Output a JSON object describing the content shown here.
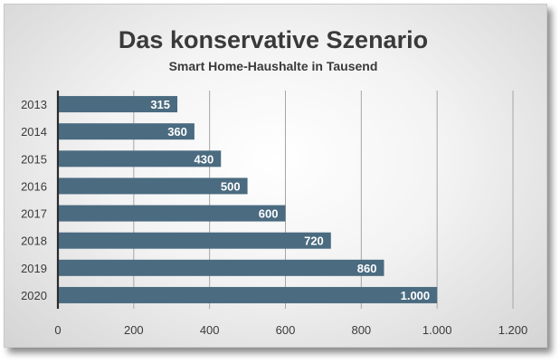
{
  "chart_data": {
    "type": "bar",
    "orientation": "horizontal",
    "title": "Das konservative Szenario",
    "subtitle": "Smart Home-Haushalte in Tausend",
    "categories": [
      "2013",
      "2014",
      "2015",
      "2016",
      "2017",
      "2018",
      "2019",
      "2020"
    ],
    "values": [
      315,
      360,
      430,
      500,
      600,
      720,
      860,
      1000
    ],
    "value_labels": [
      "315",
      "360",
      "430",
      "500",
      "600",
      "720",
      "860",
      "1.000"
    ],
    "xlim": [
      0,
      1200
    ],
    "x_ticks": [
      0,
      200,
      400,
      600,
      800,
      1000,
      1200
    ],
    "x_tick_labels": [
      "0",
      "200",
      "400",
      "600",
      "800",
      "1.000",
      "1.200"
    ],
    "grid": "vertical",
    "colors": {
      "bar": "#4a6b80",
      "grid": "#a6a6a6",
      "axis": "#2b2b2b"
    }
  }
}
